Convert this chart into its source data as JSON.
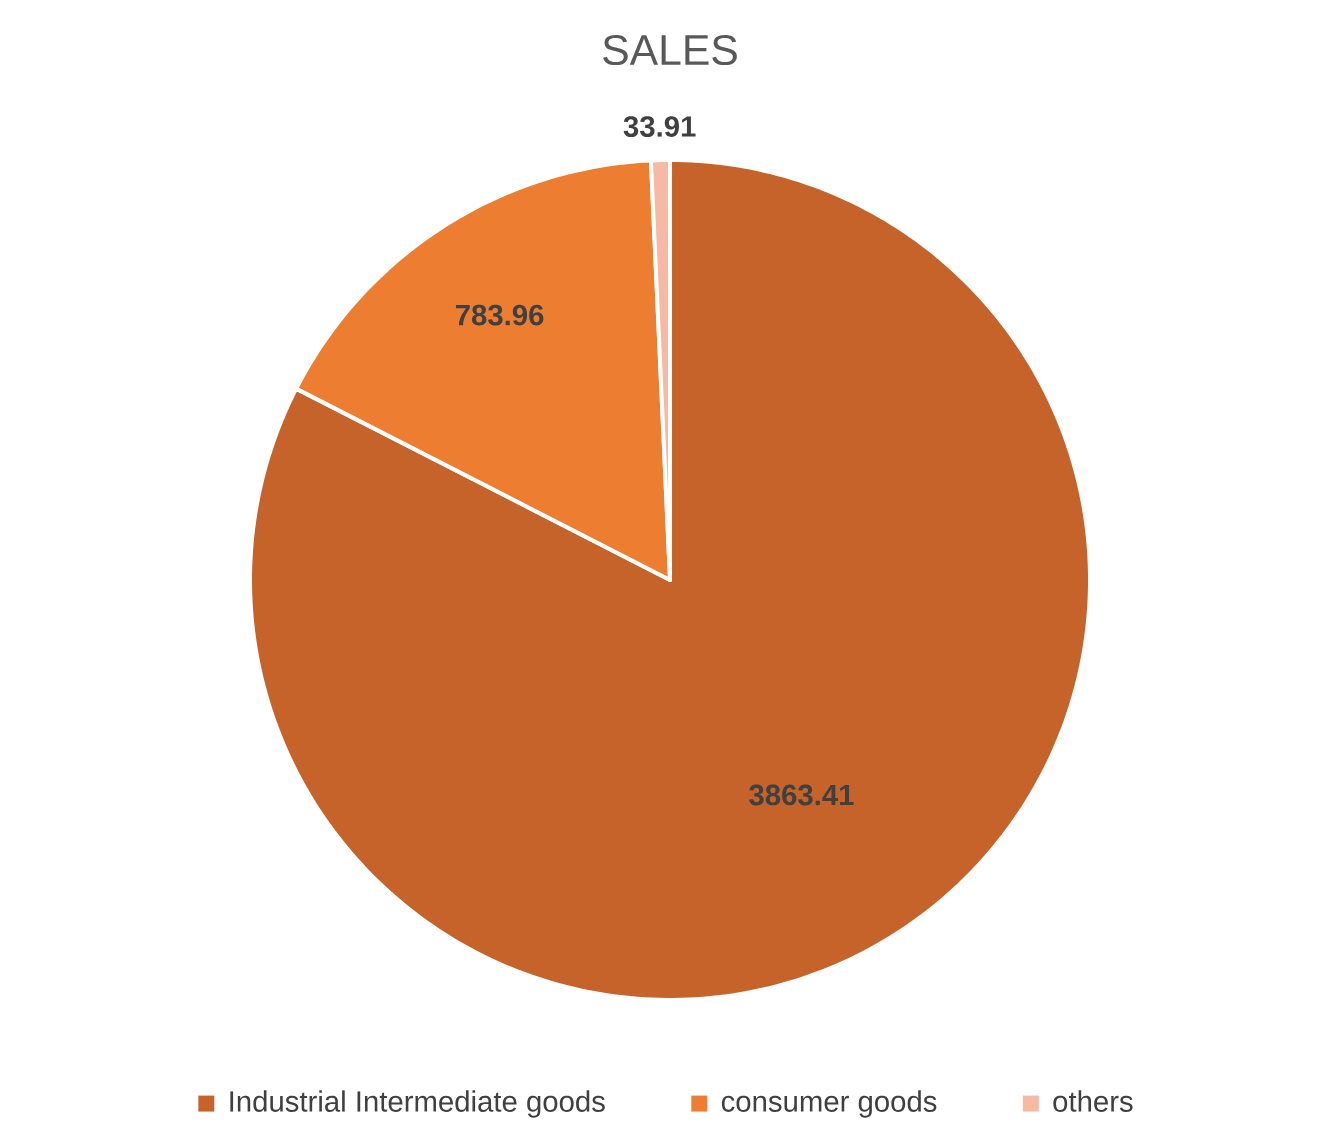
{
  "chart_data": {
    "type": "pie",
    "title": "SALES",
    "categories": [
      "Industrial Intermediate goods",
      "consumer goods",
      "others"
    ],
    "values": [
      3863.41,
      783.96,
      33.91
    ],
    "colors": [
      "#c5632b",
      "#ed7d31",
      "#f6b9a3"
    ],
    "data_labels": true,
    "legend": "bottom"
  }
}
